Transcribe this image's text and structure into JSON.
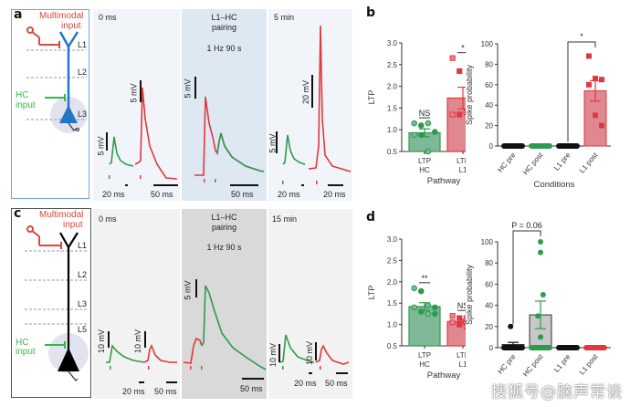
{
  "panels": {
    "a": {
      "letter": "a",
      "schematic": {
        "top_input": "Multimodal\ninput",
        "top_input_l1": "Multimodal",
        "top_input_l2": "input",
        "side_input_l1": "HC",
        "side_input_l2": "input",
        "layers": [
          "L1",
          "L2",
          "L3"
        ],
        "neuron_color": "#1f77c8",
        "frame_color": "#6fa8d6"
      },
      "traces": [
        {
          "title": "0 ms",
          "bg": "#f1f5fa",
          "scales": [
            "5 mV",
            "5 mV",
            "20 ms",
            "50 ms"
          ]
        },
        {
          "title_l1": "L1–HC",
          "title_l2": "pairing",
          "subtitle": "1 Hz 90 s",
          "bg": "#dde8f3",
          "scales": [
            "5 mV",
            "50 ms"
          ]
        },
        {
          "title": "5 min",
          "bg": "#f1f5fa",
          "scales": [
            "5 mV",
            "20 mV",
            "20 ms",
            "20 ms"
          ]
        }
      ]
    },
    "c": {
      "letter": "c",
      "schematic": {
        "top_input_l1": "Multimodal",
        "top_input_l2": "input",
        "side_input_l1": "HC",
        "side_input_l2": "input",
        "layers": [
          "L1",
          "L2",
          "L3",
          "L5"
        ],
        "neuron_color": "#000000",
        "frame_color": "#555555"
      },
      "traces": [
        {
          "title": "0 ms",
          "bg": "#f2f2f2",
          "scales": [
            "10 mV",
            "10 mV",
            "20 ms",
            "50 ms"
          ]
        },
        {
          "title_l1": "L1–HC",
          "title_l2": "pairing",
          "subtitle": "1 Hz 90 s",
          "bg": "#d9d9d9",
          "scales": [
            "5 mV",
            "50 ms"
          ]
        },
        {
          "title": "15 min",
          "bg": "#f2f2f2",
          "scales": [
            "10 mV",
            "10 mV",
            "20 ms",
            "50 ms"
          ]
        }
      ]
    },
    "b_letter": "b",
    "d_letter": "d"
  },
  "colors": {
    "hc": "#2e9a4e",
    "l1": "#e0383e",
    "hc_bar": "#7fb896",
    "l1_bar": "#e08890",
    "black": "#111111",
    "gray_bar": "#c8c8c8"
  },
  "watermark": "搜狐号@脑声常谈",
  "chart_data": [
    {
      "id": "b-ltp",
      "type": "bar",
      "title": "",
      "ylabel": "LTP",
      "xlabel": "Pathway",
      "ylim": [
        0.5,
        3.0
      ],
      "yticks": [
        "0.5",
        "1.0",
        "1.5",
        "2.0",
        "2.5",
        "3.0"
      ],
      "categories": [
        "LTP\nHC",
        "LTP\nL1"
      ],
      "category_lines": [
        [
          "LTP",
          "HC"
        ],
        [
          "LTP",
          "L1"
        ]
      ],
      "values": [
        0.93,
        1.73
      ],
      "errors": [
        0.09,
        0.25
      ],
      "significance": [
        "NS",
        "*"
      ],
      "points": [
        [
          1.15,
          1.1,
          1.15,
          0.95,
          0.88,
          0.88,
          0.5
        ],
        [
          2.65,
          2.35,
          1.4,
          1.4,
          1.35,
          1.35
        ]
      ],
      "point_shapes": [
        "circle",
        "square"
      ]
    },
    {
      "id": "b-spike",
      "type": "bar",
      "ylabel": "Spike probability",
      "xlabel": "Conditions",
      "ylim": [
        0,
        100
      ],
      "yticks": [
        "0",
        "20",
        "40",
        "60",
        "80",
        "100"
      ],
      "categories": [
        "HC pre",
        "HC post",
        "L1 pre",
        "L1 post"
      ],
      "values": [
        0,
        0,
        0,
        54
      ],
      "errors": [
        0,
        0,
        0,
        10
      ],
      "points": [
        [
          0,
          0,
          0,
          0,
          0,
          0
        ],
        [
          0,
          0,
          0,
          0,
          0,
          0
        ],
        [
          0,
          0,
          0,
          0,
          0,
          0
        ],
        [
          88,
          66,
          65,
          60,
          30,
          20
        ]
      ],
      "annotation": {
        "label": "*",
        "between": [
          "L1 pre",
          "L1 post"
        ]
      }
    },
    {
      "id": "d-ltp",
      "type": "bar",
      "ylabel": "LTP",
      "xlabel": "Pathway",
      "ylim": [
        0.5,
        3.0
      ],
      "yticks": [
        "0.5",
        "1.0",
        "1.5",
        "2.0",
        "2.5",
        "3.0"
      ],
      "categories": [
        "LTP\nHC",
        "LTP\nL1"
      ],
      "category_lines": [
        [
          "LTP",
          "HC"
        ],
        [
          "LTP",
          "L1"
        ]
      ],
      "values": [
        1.42,
        1.07
      ],
      "errors": [
        0.09,
        0.05
      ],
      "significance": [
        "**",
        "NS"
      ],
      "points": [
        [
          1.85,
          1.78,
          1.45,
          1.4,
          1.4,
          1.3,
          1.25,
          1.25
        ],
        [
          1.2,
          1.15,
          1.15,
          1.1,
          1.05,
          1.0,
          0.95,
          0.92
        ]
      ],
      "point_shapes": [
        "circle",
        "square"
      ]
    },
    {
      "id": "d-spike",
      "type": "bar",
      "ylabel": "Spike probability",
      "xlabel": "",
      "ylim": [
        0,
        100
      ],
      "yticks": [
        "0",
        "20",
        "40",
        "60",
        "80",
        "100"
      ],
      "categories": [
        "HC pre",
        "HC post",
        "L1 pre",
        "L1 post"
      ],
      "values": [
        3,
        31,
        0,
        0
      ],
      "errors": [
        2,
        13,
        0,
        0
      ],
      "points": [
        [
          20,
          0,
          0,
          0,
          0,
          0,
          0,
          0
        ],
        [
          100,
          90,
          50,
          30,
          10,
          0,
          0,
          0
        ],
        [
          0,
          0,
          0,
          0,
          0,
          0
        ],
        [
          0,
          0,
          0,
          0,
          0,
          0
        ]
      ],
      "annotation": {
        "label": "P = 0.06",
        "between": [
          "HC pre",
          "HC post"
        ]
      }
    }
  ]
}
